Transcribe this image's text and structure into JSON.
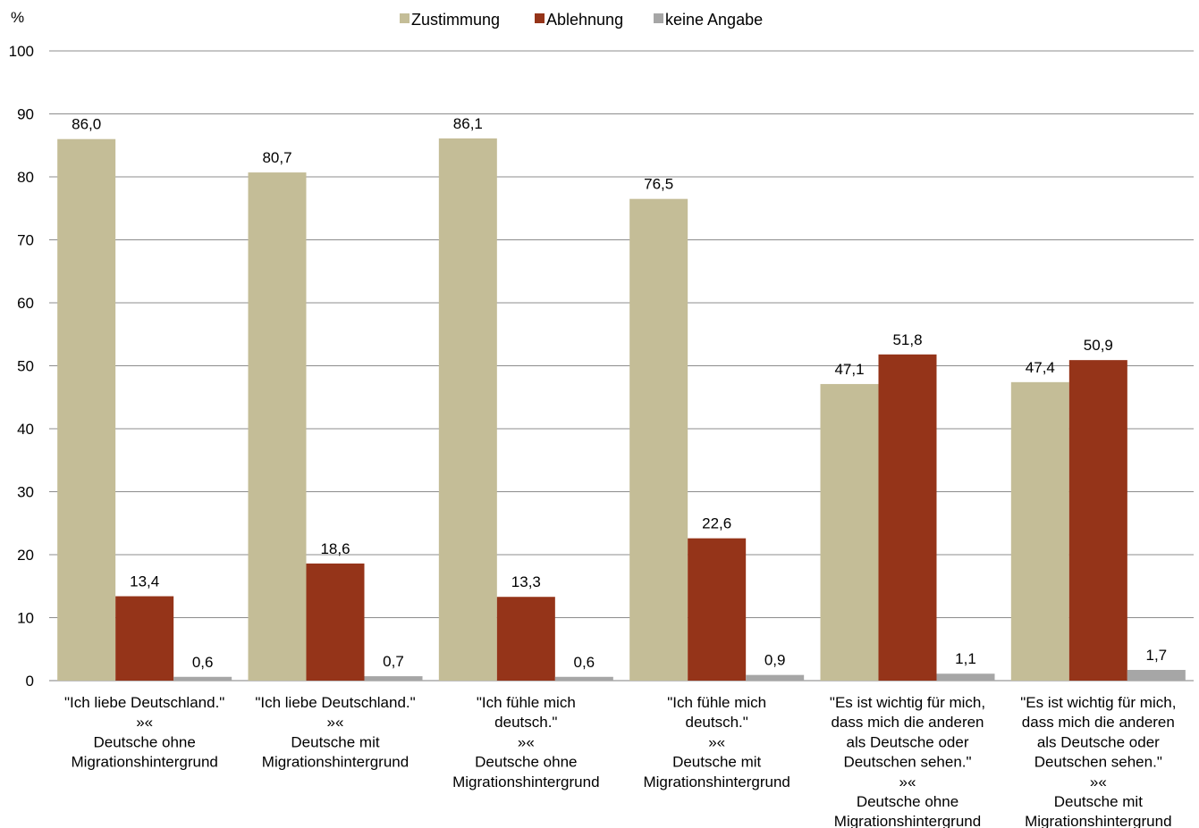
{
  "chart_data": {
    "type": "bar",
    "ylabel": "%",
    "ylim": [
      0,
      100
    ],
    "yticks": [
      0,
      10,
      20,
      30,
      40,
      50,
      60,
      70,
      80,
      90,
      100
    ],
    "grid": true,
    "legend_position": "top",
    "categories": [
      [
        "\"Ich liebe Deutschland.\"",
        "»«",
        "Deutsche ohne",
        "Migrationshintergrund"
      ],
      [
        "\"Ich liebe Deutschland.\"",
        "»«",
        "Deutsche mit",
        "Migrationshintergrund"
      ],
      [
        "\"Ich fühle mich",
        "deutsch.\"",
        "»«",
        "Deutsche ohne",
        "Migrationshintergrund"
      ],
      [
        "\"Ich fühle mich",
        "deutsch.\"",
        "»«",
        "Deutsche mit",
        "Migrationshintergrund"
      ],
      [
        "\"Es ist wichtig für mich,",
        "dass mich die anderen",
        "als Deutsche oder",
        "Deutschen sehen.\"",
        "»«",
        "Deutsche ohne",
        "Migrationshintergrund"
      ],
      [
        "\"Es ist wichtig für mich,",
        "dass mich die anderen",
        "als Deutsche oder",
        "Deutschen sehen.\"",
        "»«",
        "Deutsche mit",
        "Migrationshintergrund"
      ]
    ],
    "series": [
      {
        "name": "Zustimmung",
        "color": "#c4bd97",
        "values": [
          86.0,
          80.7,
          86.1,
          76.5,
          47.1,
          47.4
        ],
        "labels": [
          "86,0",
          "80,7",
          "86,1",
          "76,5",
          "47,1",
          "47,4"
        ]
      },
      {
        "name": "Ablehnung",
        "color": "#953419",
        "values": [
          13.4,
          18.6,
          13.3,
          22.6,
          51.8,
          50.9
        ],
        "labels": [
          "13,4",
          "18,6",
          "13,3",
          "22,6",
          "51,8",
          "50,9"
        ]
      },
      {
        "name": "keine Angabe",
        "color": "#a6a6a6",
        "values": [
          0.6,
          0.7,
          0.6,
          0.9,
          1.1,
          1.7
        ],
        "labels": [
          "0,6",
          "0,7",
          "0,6",
          "0,9",
          "1,1",
          "1,7"
        ]
      }
    ]
  }
}
